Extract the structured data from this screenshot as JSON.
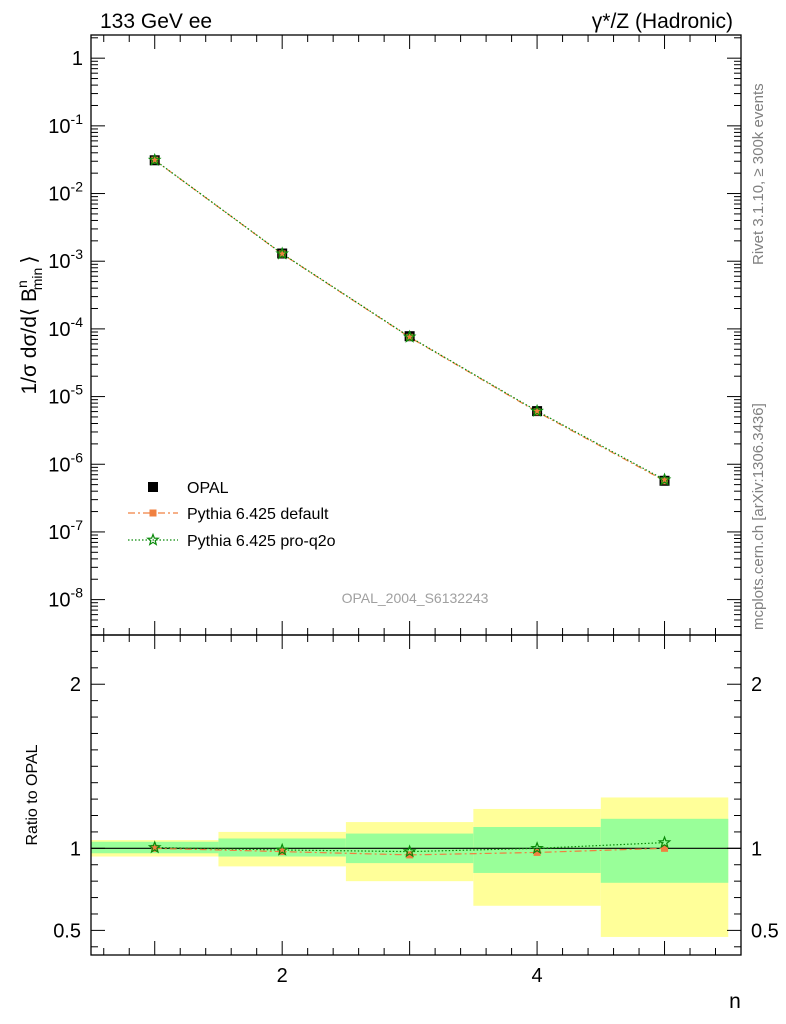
{
  "header": {
    "left_title": "133 GeV ee",
    "right_title": "γ*/Z (Hadronic)"
  },
  "side_labels": {
    "rivet": "Rivet 3.1.10, ≥ 300k events",
    "mcplots": "mcplots.cern.ch [arXiv:1306.3436]"
  },
  "watermark": "OPAL_2004_S6132243",
  "colors": {
    "data": "#000000",
    "pythia_default": "#f08040",
    "pythia_proq2o": "#0a8a0a",
    "band_inner": "#99ff99",
    "band_outer": "#ffff99"
  },
  "chart_data": [
    {
      "type": "scatter",
      "panel": "main",
      "yscale": "log",
      "xlim": [
        0.5,
        5.6
      ],
      "ylim": [
        3e-09,
        2.2
      ],
      "ylabel": "1/σ dσ/d⟨ B",
      "ylabel_sup": "n",
      "ylabel_sub": "min",
      "ylabel_end": "⟩",
      "yticks": [
        {
          "value": 1,
          "label": "1"
        },
        {
          "value": 0.1,
          "base": "10",
          "exp": "-1"
        },
        {
          "value": 0.01,
          "base": "10",
          "exp": "-2"
        },
        {
          "value": 0.001,
          "base": "10",
          "exp": "-3"
        },
        {
          "value": 0.0001,
          "base": "10",
          "exp": "-4"
        },
        {
          "value": 1e-05,
          "base": "10",
          "exp": "-5"
        },
        {
          "value": 1e-06,
          "base": "10",
          "exp": "-6"
        },
        {
          "value": 1e-07,
          "base": "10",
          "exp": "-7"
        },
        {
          "value": 1e-08,
          "base": "10",
          "exp": "-8"
        }
      ],
      "x": [
        1,
        2,
        3,
        4,
        5
      ],
      "series": [
        {
          "name": "OPAL",
          "values": [
            0.031,
            0.0013,
            7.8e-05,
            6.1e-06,
            5.7e-07
          ]
        },
        {
          "name": "Pythia 6.425 default",
          "values": [
            0.0311,
            0.00128,
            7.52e-05,
            5.95e-06,
            5.7e-07
          ]
        },
        {
          "name": "Pythia 6.425 pro-q2o",
          "values": [
            0.0312,
            0.00129,
            7.62e-05,
            6.1e-06,
            5.9e-07
          ]
        }
      ],
      "legend": "bottom-left"
    },
    {
      "type": "line",
      "panel": "ratio",
      "xlabel": "n",
      "ylabel": "Ratio to OPAL",
      "xlim": [
        0.5,
        5.6
      ],
      "ylim": [
        0.35,
        2.3
      ],
      "yticks": [
        0.5,
        1,
        2
      ],
      "xticks": [
        2,
        4
      ],
      "x": [
        1,
        2,
        3,
        4,
        5
      ],
      "bins": [
        [
          0.5,
          1.5
        ],
        [
          1.5,
          2.5
        ],
        [
          2.5,
          3.5
        ],
        [
          3.5,
          4.5
        ],
        [
          4.5,
          5.5
        ]
      ],
      "band_inner": [
        [
          0.97,
          1.04
        ],
        [
          0.95,
          1.06
        ],
        [
          0.91,
          1.09
        ],
        [
          0.85,
          1.13
        ],
        [
          0.79,
          1.18
        ]
      ],
      "band_outer": [
        [
          0.95,
          1.05
        ],
        [
          0.89,
          1.1
        ],
        [
          0.8,
          1.16
        ],
        [
          0.65,
          1.24
        ],
        [
          0.46,
          1.31
        ]
      ],
      "series": [
        {
          "name": "Pythia 6.425 default",
          "values": [
            1.0,
            0.98,
            0.96,
            0.975,
            1.0
          ]
        },
        {
          "name": "Pythia 6.425 pro-q2o",
          "values": [
            1.005,
            0.99,
            0.98,
            1.0,
            1.035
          ]
        }
      ]
    }
  ]
}
